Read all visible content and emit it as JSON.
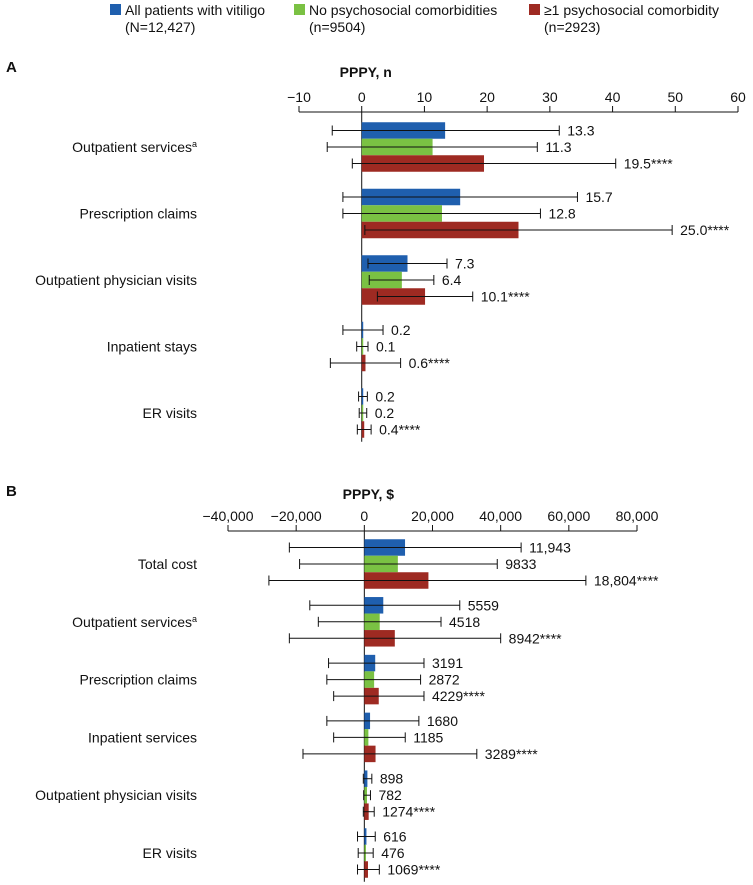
{
  "chart_data": {
    "type": "bar",
    "orientation": "horizontal",
    "legend": [
      {
        "name": "All patients with vitiligo",
        "n": "(N=12,427)",
        "color": "#1f5fae"
      },
      {
        "name": "No psychosocial comorbidities",
        "n": "(n=9504)",
        "color": "#7ac143"
      },
      {
        "name": "≥1 psychosocial comorbidity",
        "n": "(n=2923)",
        "color": "#9e2a22"
      }
    ],
    "panels": [
      {
        "label": "A",
        "xlabel": "PPPY, n",
        "xlim": [
          -10,
          60
        ],
        "ticks": [
          -10,
          0,
          10,
          20,
          30,
          40,
          50,
          60
        ],
        "tick_labels": [
          "−10",
          "0",
          "10",
          "20",
          "30",
          "40",
          "50",
          "60"
        ],
        "categories": [
          {
            "label": "Outpatient services",
            "sup": "a",
            "values": [
              13.3,
              11.3,
              19.5
            ],
            "err_lo": [
              -4.7,
              -5.5,
              -1.5
            ],
            "err_hi": [
              31.5,
              28.0,
              40.5
            ],
            "value_labels": [
              "13.3",
              "11.3",
              "19.5****"
            ]
          },
          {
            "label": "Prescription claims",
            "sup": "",
            "values": [
              15.7,
              12.8,
              25.0
            ],
            "err_lo": [
              -3.0,
              -3.0,
              0.5
            ],
            "err_hi": [
              34.4,
              28.5,
              49.5
            ],
            "value_labels": [
              "15.7",
              "12.8",
              "25.0****"
            ]
          },
          {
            "label": "Outpatient physician visits",
            "sup": "",
            "values": [
              7.3,
              6.4,
              10.1
            ],
            "err_lo": [
              1.0,
              1.2,
              2.5
            ],
            "err_hi": [
              13.6,
              11.5,
              17.7
            ],
            "value_labels": [
              "7.3",
              "6.4",
              "10.1****"
            ]
          },
          {
            "label": "Inpatient stays",
            "sup": "",
            "values": [
              0.2,
              0.1,
              0.6
            ],
            "err_lo": [
              -3.0,
              -0.8,
              -5.0
            ],
            "err_hi": [
              3.4,
              1.0,
              6.2
            ],
            "value_labels": [
              "0.2",
              "0.1",
              "0.6****"
            ]
          },
          {
            "label": "ER visits",
            "sup": "",
            "values": [
              0.2,
              0.2,
              0.4
            ],
            "err_lo": [
              -0.5,
              -0.4,
              -0.7
            ],
            "err_hi": [
              0.9,
              0.8,
              1.5
            ],
            "value_labels": [
              "0.2",
              "0.2",
              "0.4****"
            ]
          }
        ]
      },
      {
        "label": "B",
        "xlabel": "PPPY, $",
        "xlim": [
          -40000,
          80000
        ],
        "ticks": [
          -40000,
          -20000,
          0,
          20000,
          40000,
          60000,
          80000
        ],
        "tick_labels": [
          "−40,000",
          "−20,000",
          "0",
          "20,000",
          "40,000",
          "60,000",
          "80,000"
        ],
        "categories": [
          {
            "label": "Total cost",
            "sup": "",
            "values": [
              11943,
              9833,
              18804
            ],
            "err_lo": [
              -22000,
              -19000,
              -28000
            ],
            "err_hi": [
              46000,
              39000,
              65000
            ],
            "value_labels": [
              "11,943",
              "9833",
              "18,804****"
            ]
          },
          {
            "label": "Outpatient services",
            "sup": "a",
            "values": [
              5559,
              4518,
              8942
            ],
            "err_lo": [
              -16000,
              -13500,
              -22000
            ],
            "err_hi": [
              28000,
              22500,
              40000
            ],
            "value_labels": [
              "5559",
              "4518",
              "8942****"
            ]
          },
          {
            "label": "Prescription claims",
            "sup": "",
            "values": [
              3191,
              2872,
              4229
            ],
            "err_lo": [
              -10500,
              -11000,
              -9000
            ],
            "err_hi": [
              17500,
              16500,
              17500
            ],
            "value_labels": [
              "3191",
              "2872",
              "4229****"
            ]
          },
          {
            "label": "Inpatient services",
            "sup": "",
            "values": [
              1680,
              1185,
              3289
            ],
            "err_lo": [
              -11000,
              -9000,
              -18000
            ],
            "err_hi": [
              16000,
              12000,
              33000
            ],
            "value_labels": [
              "1680",
              "1185",
              "3289****"
            ]
          },
          {
            "label": "Outpatient physician visits",
            "sup": "",
            "values": [
              898,
              782,
              1274
            ],
            "err_lo": [
              -300,
              -200,
              -300
            ],
            "err_hi": [
              2200,
              1800,
              2900
            ],
            "value_labels": [
              "898",
              "782",
              "1274****"
            ]
          },
          {
            "label": "ER visits",
            "sup": "",
            "values": [
              616,
              476,
              1069
            ],
            "err_lo": [
              -2000,
              -1800,
              -2000
            ],
            "err_hi": [
              3200,
              2600,
              4400
            ],
            "value_labels": [
              "616",
              "476",
              "1069****"
            ]
          }
        ]
      }
    ]
  }
}
